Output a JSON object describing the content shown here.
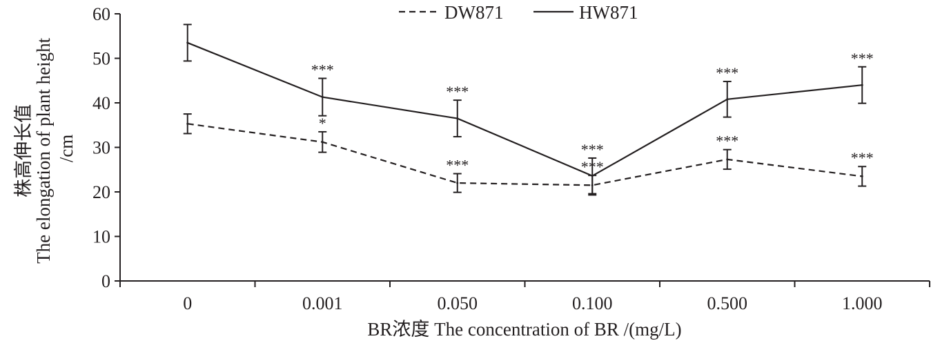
{
  "chart_data": {
    "type": "line",
    "categories": [
      "0",
      "0.001",
      "0.050",
      "0.100",
      "0.500",
      "1.000"
    ],
    "xlabel": "BR浓度 The concentration of BR /(mg/L)",
    "ylabel_lines": [
      "株高伸长值",
      "The elongation of plant height",
      "/cm"
    ],
    "ylim": [
      0,
      60
    ],
    "yticks": [
      0,
      10,
      20,
      30,
      40,
      50,
      60
    ],
    "grid": false,
    "legend_position": "top-center",
    "series": [
      {
        "name": "DW871",
        "style": "dashed",
        "values": [
          35.3,
          31.2,
          22.0,
          21.5,
          27.3,
          23.5
        ],
        "errors": [
          2.2,
          2.3,
          2.1,
          2.2,
          2.2,
          2.2
        ],
        "significance": [
          "",
          "*",
          "***",
          "***",
          "***",
          "***"
        ]
      },
      {
        "name": "HW871",
        "style": "solid",
        "values": [
          53.5,
          41.3,
          36.5,
          23.6,
          40.8,
          44.0
        ],
        "errors": [
          4.1,
          4.2,
          4.1,
          4.0,
          4.0,
          4.1
        ],
        "significance": [
          "",
          "***",
          "***",
          "***",
          "***",
          "***"
        ]
      }
    ],
    "colors": {
      "line": "#231f20"
    }
  }
}
